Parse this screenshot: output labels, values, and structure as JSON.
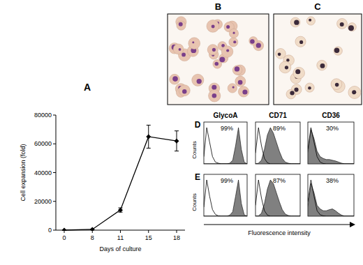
{
  "chart_data": [
    {
      "type": "line",
      "title": "A",
      "x_label": "Days of culture",
      "y_label": "Cell expansion (fold)",
      "categories": [
        "0",
        "8",
        "11",
        "15",
        "18"
      ],
      "values": [
        0,
        500,
        14000,
        65000,
        62000
      ],
      "errors": [
        0,
        0,
        1500,
        8000,
        7000
      ],
      "color": "#000000",
      "marker": "diamond",
      "ylim": [
        0,
        80000
      ],
      "yticks": [
        0,
        20000,
        40000,
        60000,
        80000
      ],
      "grid": false
    },
    {
      "type": "area",
      "title": "GlycoA",
      "annotations": [
        {
          "text": "99%"
        }
      ],
      "tick_labels": false,
      "x": [
        0,
        1,
        2,
        3,
        4,
        5,
        6,
        7,
        8,
        9,
        10,
        11,
        12,
        13,
        14,
        15
      ],
      "xlim": [
        0,
        15
      ],
      "ylim": [
        0,
        100
      ],
      "series": [
        {
          "type": "area",
          "color": "#808080",
          "values": [
            0,
            0,
            0,
            0,
            0,
            0,
            0,
            0,
            0,
            2,
            10,
            50,
            100,
            40,
            5,
            0
          ]
        },
        {
          "type": "line",
          "color": "#000000",
          "values": [
            20,
            100,
            60,
            20,
            5,
            2,
            0,
            0,
            0,
            0,
            0,
            0,
            0,
            0,
            0,
            0
          ]
        }
      ]
    },
    {
      "type": "area",
      "title": "CD71",
      "annotations": [
        {
          "text": "89%"
        }
      ],
      "tick_labels": false,
      "x": [
        0,
        1,
        2,
        3,
        4,
        5,
        6,
        7,
        8,
        9,
        10,
        11,
        12,
        13,
        14,
        15
      ],
      "xlim": [
        0,
        15
      ],
      "ylim": [
        0,
        100
      ],
      "series": [
        {
          "type": "area",
          "color": "#808080",
          "values": [
            0,
            2,
            10,
            40,
            80,
            100,
            85,
            60,
            35,
            15,
            5,
            2,
            0,
            0,
            0,
            0
          ]
        },
        {
          "type": "line",
          "color": "#000000",
          "values": [
            30,
            100,
            50,
            15,
            3,
            0,
            0,
            0,
            0,
            0,
            0,
            0,
            0,
            0,
            0,
            0
          ]
        }
      ]
    },
    {
      "type": "area",
      "title": "CD36",
      "annotations": [
        {
          "text": "30%"
        }
      ],
      "tick_labels": false,
      "x": [
        0,
        1,
        2,
        3,
        4,
        5,
        6,
        7,
        8,
        9,
        10,
        11,
        12,
        13,
        14,
        15
      ],
      "xlim": [
        0,
        15
      ],
      "ylim": [
        0,
        100
      ],
      "series": [
        {
          "type": "area",
          "color": "#808080",
          "values": [
            30,
            95,
            70,
            35,
            20,
            15,
            12,
            12,
            10,
            8,
            5,
            2,
            0,
            0,
            0,
            0
          ]
        },
        {
          "type": "line",
          "color": "#000000",
          "values": [
            40,
            100,
            60,
            20,
            5,
            1,
            0,
            0,
            0,
            0,
            0,
            0,
            0,
            0,
            0,
            0
          ]
        }
      ]
    },
    {
      "type": "area",
      "annotations": [
        {
          "text": "99%"
        }
      ],
      "tick_labels": false,
      "x": [
        0,
        1,
        2,
        3,
        4,
        5,
        6,
        7,
        8,
        9,
        10,
        11,
        12,
        13,
        14,
        15
      ],
      "xlim": [
        0,
        15
      ],
      "ylim": [
        0,
        100
      ],
      "series": [
        {
          "type": "area",
          "color": "#808080",
          "values": [
            0,
            0,
            0,
            0,
            0,
            0,
            0,
            0,
            0,
            3,
            12,
            55,
            100,
            35,
            4,
            0
          ]
        },
        {
          "type": "line",
          "color": "#000000",
          "values": [
            25,
            100,
            55,
            18,
            5,
            1,
            0,
            0,
            0,
            0,
            0,
            0,
            0,
            0,
            0,
            0
          ]
        }
      ]
    },
    {
      "type": "area",
      "annotations": [
        {
          "text": "87%"
        }
      ],
      "tick_labels": false,
      "x": [
        0,
        1,
        2,
        3,
        4,
        5,
        6,
        7,
        8,
        9,
        10,
        11,
        12,
        13,
        14,
        15
      ],
      "xlim": [
        0,
        15
      ],
      "ylim": [
        0,
        100
      ],
      "series": [
        {
          "type": "area",
          "color": "#808080",
          "values": [
            0,
            1,
            8,
            35,
            75,
            100,
            90,
            65,
            40,
            18,
            6,
            2,
            0,
            0,
            0,
            0
          ]
        },
        {
          "type": "line",
          "color": "#000000",
          "values": [
            30,
            100,
            50,
            15,
            3,
            0,
            0,
            0,
            0,
            0,
            0,
            0,
            0,
            0,
            0,
            0
          ]
        }
      ]
    },
    {
      "type": "area",
      "annotations": [
        {
          "text": "38%"
        }
      ],
      "tick_labels": false,
      "x": [
        0,
        1,
        2,
        3,
        4,
        5,
        6,
        7,
        8,
        9,
        10,
        11,
        12,
        13,
        14,
        15
      ],
      "xlim": [
        0,
        15
      ],
      "ylim": [
        0,
        100
      ],
      "series": [
        {
          "type": "area",
          "color": "#808080",
          "values": [
            25,
            90,
            65,
            30,
            20,
            15,
            15,
            18,
            20,
            15,
            8,
            3,
            0,
            0,
            0,
            0
          ]
        },
        {
          "type": "line",
          "color": "#000000",
          "values": [
            40,
            100,
            55,
            15,
            4,
            1,
            0,
            0,
            0,
            0,
            0,
            0,
            0,
            0,
            0,
            0
          ]
        }
      ]
    }
  ],
  "images": [
    {
      "label": "B"
    },
    {
      "label": "C"
    }
  ],
  "histogram_rows": [
    {
      "label": "D"
    },
    {
      "label": "E"
    }
  ],
  "histogram_axes": {
    "y_label": "Counts",
    "x_label": "Fluorescence intensity"
  }
}
